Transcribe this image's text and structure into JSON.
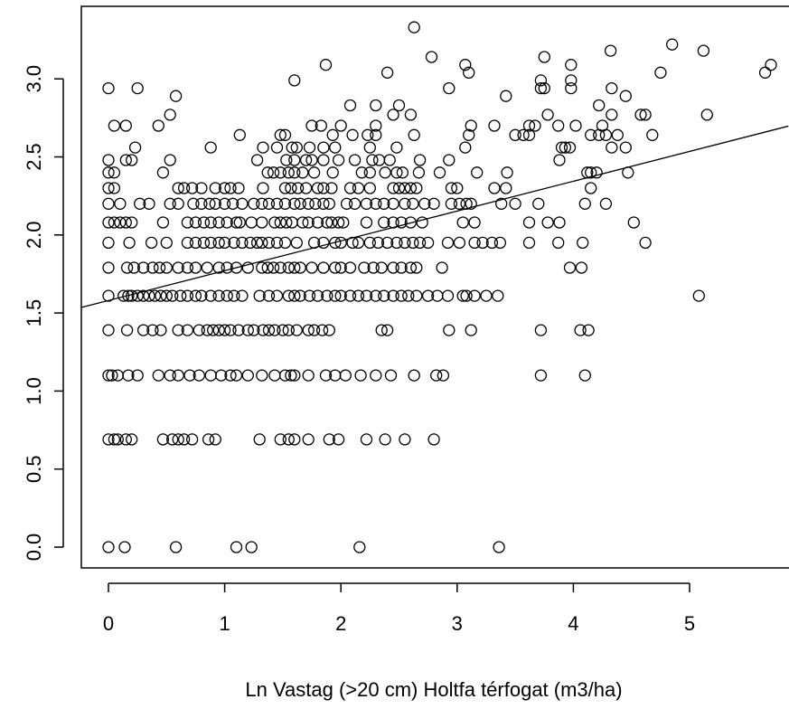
{
  "chart_data": {
    "type": "scatter",
    "title": "",
    "xlabel": "Ln Vastag (>20 cm) Holtfa térfogat (m3/ha)",
    "ylabel": "",
    "xlim": [
      -0.25,
      5.85
    ],
    "ylim": [
      -0.15,
      3.4
    ],
    "x_ticks": [
      0,
      1,
      2,
      3,
      4,
      5
    ],
    "x_tick_labels": [
      "0",
      "1",
      "2",
      "3",
      "4",
      "5"
    ],
    "y_ticks": [
      0.0,
      0.5,
      1.0,
      1.5,
      2.0,
      2.5,
      3.0
    ],
    "y_tick_labels": [
      "0.0",
      "0.5",
      "1.0",
      "1.5",
      "2.0",
      "2.5",
      "3.0"
    ],
    "grid": false,
    "marker": "open-circle",
    "regression_line": {
      "intercept": 1.58,
      "slope": 0.191
    },
    "rows": [
      {
        "y": 0.0,
        "x": [
          0.0,
          0.14,
          0.58,
          1.1,
          1.23,
          2.16,
          3.36
        ]
      },
      {
        "y": 0.69,
        "x": [
          0.0,
          0.05,
          0.08,
          0.15,
          0.2,
          0.47,
          0.55,
          0.6,
          0.65,
          0.72,
          0.86,
          0.92,
          1.3,
          1.48,
          1.55,
          1.6,
          1.72,
          1.9,
          1.98,
          2.22,
          2.38,
          2.55,
          2.8
        ]
      },
      {
        "y": 1.1,
        "x": [
          0.0,
          0.03,
          0.08,
          0.17,
          0.25,
          0.43,
          0.53,
          0.6,
          0.7,
          0.78,
          0.88,
          0.97,
          1.05,
          1.1,
          1.2,
          1.32,
          1.43,
          1.52,
          1.57,
          1.6,
          1.72,
          1.87,
          1.95,
          2.04,
          2.17,
          2.3,
          2.43,
          2.63,
          2.82,
          2.88,
          3.72,
          4.1
        ]
      },
      {
        "y": 1.39,
        "x": [
          0.0,
          0.16,
          0.3,
          0.38,
          0.45,
          0.6,
          0.68,
          0.78,
          0.85,
          0.9,
          0.95,
          1.0,
          1.05,
          1.12,
          1.2,
          1.25,
          1.33,
          1.38,
          1.43,
          1.5,
          1.55,
          1.62,
          1.72,
          1.77,
          1.84,
          1.9,
          2.35,
          2.4,
          2.93,
          3.12,
          3.72,
          4.06,
          4.13
        ]
      },
      {
        "y": 1.61,
        "x": [
          0.0,
          0.13,
          0.17,
          0.2,
          0.25,
          0.3,
          0.35,
          0.4,
          0.45,
          0.5,
          0.55,
          0.62,
          0.68,
          0.75,
          0.8,
          0.88,
          0.95,
          1.02,
          1.08,
          1.15,
          1.3,
          1.38,
          1.45,
          1.55,
          1.6,
          1.65,
          1.73,
          1.8,
          1.88,
          1.95,
          2.0,
          2.08,
          2.15,
          2.22,
          2.3,
          2.37,
          2.45,
          2.52,
          2.58,
          2.65,
          2.75,
          2.83,
          2.92,
          3.05,
          3.08,
          3.15,
          3.25,
          3.35,
          5.08
        ]
      },
      {
        "y": 1.79,
        "x": [
          0.0,
          0.16,
          0.22,
          0.3,
          0.38,
          0.44,
          0.5,
          0.6,
          0.68,
          0.75,
          0.85,
          0.95,
          1.02,
          1.1,
          1.2,
          1.32,
          1.37,
          1.42,
          1.48,
          1.55,
          1.6,
          1.65,
          1.75,
          1.85,
          1.95,
          2.0,
          2.08,
          2.2,
          2.28,
          2.35,
          2.45,
          2.52,
          2.6,
          2.65,
          2.87,
          3.97,
          4.07
        ]
      },
      {
        "y": 1.95,
        "x": [
          0.0,
          0.18,
          0.37,
          0.5,
          0.68,
          0.75,
          0.82,
          0.88,
          0.95,
          1.0,
          1.08,
          1.15,
          1.22,
          1.28,
          1.32,
          1.38,
          1.45,
          1.52,
          1.62,
          1.77,
          1.85,
          1.95,
          2.0,
          2.1,
          2.15,
          2.25,
          2.32,
          2.4,
          2.48,
          2.55,
          2.62,
          2.68,
          2.75,
          2.92,
          3.02,
          3.15,
          3.22,
          3.3,
          3.37,
          3.62,
          3.87,
          4.08,
          4.62
        ]
      },
      {
        "y": 2.08,
        "x": [
          0.0,
          0.05,
          0.1,
          0.15,
          0.2,
          0.47,
          0.68,
          0.75,
          0.82,
          0.88,
          0.95,
          1.02,
          1.1,
          1.13,
          1.23,
          1.32,
          1.43,
          1.48,
          1.53,
          1.58,
          1.67,
          1.72,
          1.8,
          1.88,
          1.92,
          1.98,
          2.02,
          2.22,
          2.37,
          2.45,
          2.52,
          2.6,
          2.7,
          3.05,
          3.15,
          3.62,
          3.78,
          3.88,
          4.52
        ]
      },
      {
        "y": 2.2,
        "x": [
          0.0,
          0.1,
          0.27,
          0.35,
          0.53,
          0.6,
          0.73,
          0.8,
          0.87,
          0.92,
          1.0,
          1.07,
          1.15,
          1.25,
          1.32,
          1.38,
          1.45,
          1.52,
          1.6,
          1.65,
          1.72,
          1.78,
          1.85,
          1.9,
          2.05,
          2.12,
          2.22,
          2.3,
          2.37,
          2.45,
          2.55,
          2.62,
          2.72,
          2.8,
          2.95,
          3.02,
          3.08,
          3.12,
          3.38,
          3.5,
          3.7,
          4.1,
          4.28
        ]
      },
      {
        "y": 2.3,
        "x": [
          0.0,
          0.05,
          0.6,
          0.65,
          0.72,
          0.8,
          0.92,
          1.0,
          1.05,
          1.12,
          1.33,
          1.52,
          1.57,
          1.63,
          1.7,
          1.8,
          1.85,
          1.92,
          2.08,
          2.15,
          2.25,
          2.45,
          2.5,
          2.55,
          2.6,
          2.65,
          2.95,
          3.0,
          3.32,
          3.42,
          4.15
        ]
      },
      {
        "y": 2.4,
        "x": [
          0.0,
          0.05,
          0.47,
          1.37,
          1.42,
          1.48,
          1.55,
          1.6,
          1.67,
          1.77,
          1.93,
          2.18,
          2.25,
          2.38,
          2.48,
          2.53,
          2.67,
          2.85,
          3.17,
          3.43,
          4.12,
          4.15,
          4.2,
          4.47
        ]
      },
      {
        "y": 2.48,
        "x": [
          0.0,
          0.15,
          0.2,
          0.53,
          1.28,
          1.53,
          1.6,
          1.7,
          1.75,
          1.85,
          1.98,
          2.12,
          2.27,
          2.33,
          2.42,
          2.68,
          2.93,
          3.88
        ]
      },
      {
        "y": 2.56,
        "x": [
          0.23,
          0.88,
          1.33,
          1.45,
          1.58,
          1.62,
          1.73,
          1.85,
          1.95,
          2.25,
          2.48,
          3.07,
          3.9,
          3.93,
          3.97,
          4.33,
          4.45
        ]
      },
      {
        "y": 2.64,
        "x": [
          1.13,
          1.48,
          1.52,
          1.93,
          2.1,
          2.23,
          2.3,
          2.63,
          3.1,
          3.5,
          3.57,
          3.62,
          4.15,
          4.22,
          4.28,
          4.38,
          4.68
        ]
      },
      {
        "y": 2.7,
        "x": [
          0.05,
          0.15,
          0.43,
          1.75,
          1.83,
          2.0,
          2.3,
          3.12,
          3.32,
          3.62,
          3.67,
          3.87,
          4.02,
          4.25
        ]
      },
      {
        "y": 2.77,
        "x": [
          0.53,
          2.45,
          2.6,
          3.78,
          4.33,
          4.58,
          4.62
        ]
      },
      {
        "y": 2.83,
        "x": [
          2.08,
          2.3,
          2.5,
          4.22
        ]
      },
      {
        "y": 2.89,
        "x": [
          0.58,
          3.42,
          4.45
        ]
      },
      {
        "y": 2.94,
        "x": [
          0.0,
          0.25,
          2.93,
          3.72,
          3.75,
          3.98,
          4.33
        ]
      },
      {
        "y": 2.99,
        "x": [
          1.6,
          3.72,
          3.98
        ]
      },
      {
        "y": 3.04,
        "x": [
          2.4,
          3.1,
          4.75,
          5.65
        ]
      },
      {
        "y": 3.09,
        "x": [
          1.87,
          3.07,
          3.98,
          5.7
        ]
      },
      {
        "y": 3.14,
        "x": [
          2.78,
          3.75
        ]
      },
      {
        "y": 3.18,
        "x": [
          4.32,
          5.12
        ]
      },
      {
        "y": 3.22,
        "x": [
          4.85
        ]
      },
      {
        "y": 3.33,
        "x": [
          2.63
        ]
      },
      {
        "y": 2.77,
        "x": [
          5.15
        ]
      }
    ]
  }
}
